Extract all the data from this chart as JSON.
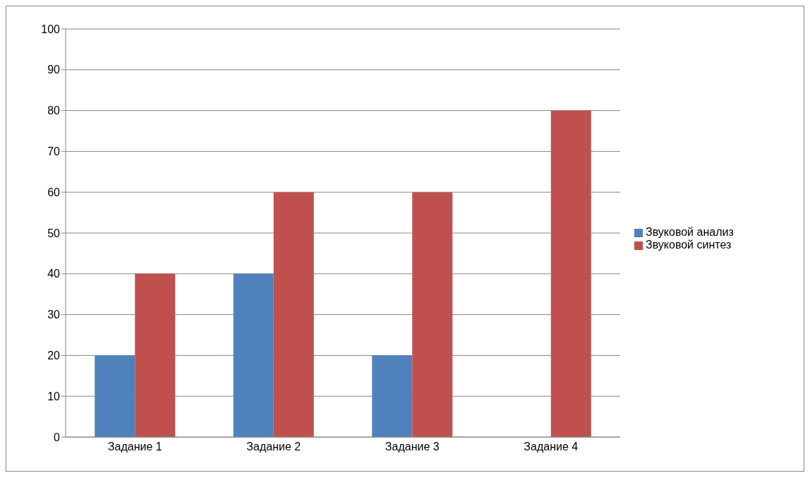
{
  "chart_data": {
    "type": "bar",
    "categories": [
      "Задание 1",
      "Задание 2",
      "Задание 3",
      "Задание 4"
    ],
    "series": [
      {
        "name": "Звуковой анализ",
        "color": "#4f81bd",
        "values": [
          20,
          40,
          20,
          0
        ]
      },
      {
        "name": "Звуковой синтез",
        "color": "#c0504d",
        "values": [
          40,
          60,
          60,
          80
        ]
      }
    ],
    "ylim": [
      0,
      100
    ],
    "yticks": [
      0,
      10,
      20,
      30,
      40,
      50,
      60,
      70,
      80,
      90,
      100
    ],
    "grid": "y",
    "legend": "right"
  }
}
